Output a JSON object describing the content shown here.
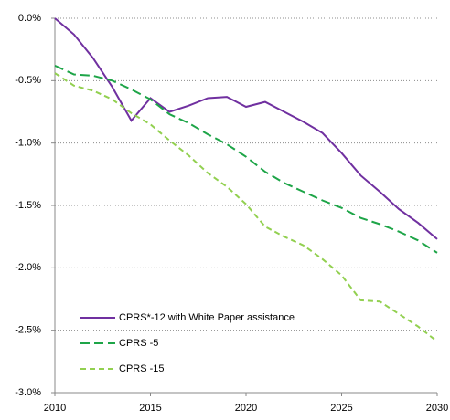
{
  "chart_data": {
    "type": "line",
    "x": [
      2010,
      2011,
      2012,
      2013,
      2014,
      2015,
      2016,
      2017,
      2018,
      2019,
      2020,
      2021,
      2022,
      2023,
      2024,
      2025,
      2026,
      2027,
      2028,
      2029,
      2030
    ],
    "series": [
      {
        "name": "CPRS*-12 with White Paper assistance",
        "color": "#7030a0",
        "line_style": "solid",
        "values": [
          0.0,
          -0.13,
          -0.32,
          -0.55,
          -0.82,
          -0.64,
          -0.75,
          -0.7,
          -0.64,
          -0.63,
          -0.71,
          -0.67,
          -0.75,
          -0.83,
          -0.92,
          -1.08,
          -1.26,
          -1.39,
          -1.53,
          -1.64,
          -1.77
        ]
      },
      {
        "name": "CPRS -5",
        "color": "#1ea548",
        "line_style": "long-dash",
        "values": [
          -0.38,
          -0.45,
          -0.46,
          -0.5,
          -0.57,
          -0.65,
          -0.77,
          -0.84,
          -0.93,
          -1.01,
          -1.11,
          -1.23,
          -1.32,
          -1.39,
          -1.46,
          -1.52,
          -1.6,
          -1.65,
          -1.71,
          -1.78,
          -1.88
        ]
      },
      {
        "name": "CPRS -15",
        "color": "#92d050",
        "line_style": "short-dash",
        "values": [
          -0.44,
          -0.54,
          -0.58,
          -0.65,
          -0.76,
          -0.85,
          -0.98,
          -1.1,
          -1.24,
          -1.35,
          -1.49,
          -1.67,
          -1.75,
          -1.82,
          -1.93,
          -2.06,
          -2.26,
          -2.27,
          -2.37,
          -2.47,
          -2.59
        ]
      }
    ],
    "xlim": [
      2010,
      2030
    ],
    "xticks": [
      2010,
      2015,
      2020,
      2025,
      2030
    ],
    "ylim": [
      -3.0,
      0.0
    ],
    "yticks": [
      {
        "value": 0.0,
        "label": "0.0%"
      },
      {
        "value": -0.5,
        "label": "-0.5%"
      },
      {
        "value": -1.0,
        "label": "-1.0%"
      },
      {
        "value": -1.5,
        "label": "-1.5%"
      },
      {
        "value": -2.0,
        "label": "-2.0%"
      },
      {
        "value": -2.5,
        "label": "-2.5%"
      },
      {
        "value": -3.0,
        "label": "-3.0%"
      }
    ],
    "grid": true,
    "legend": "lower-left"
  }
}
